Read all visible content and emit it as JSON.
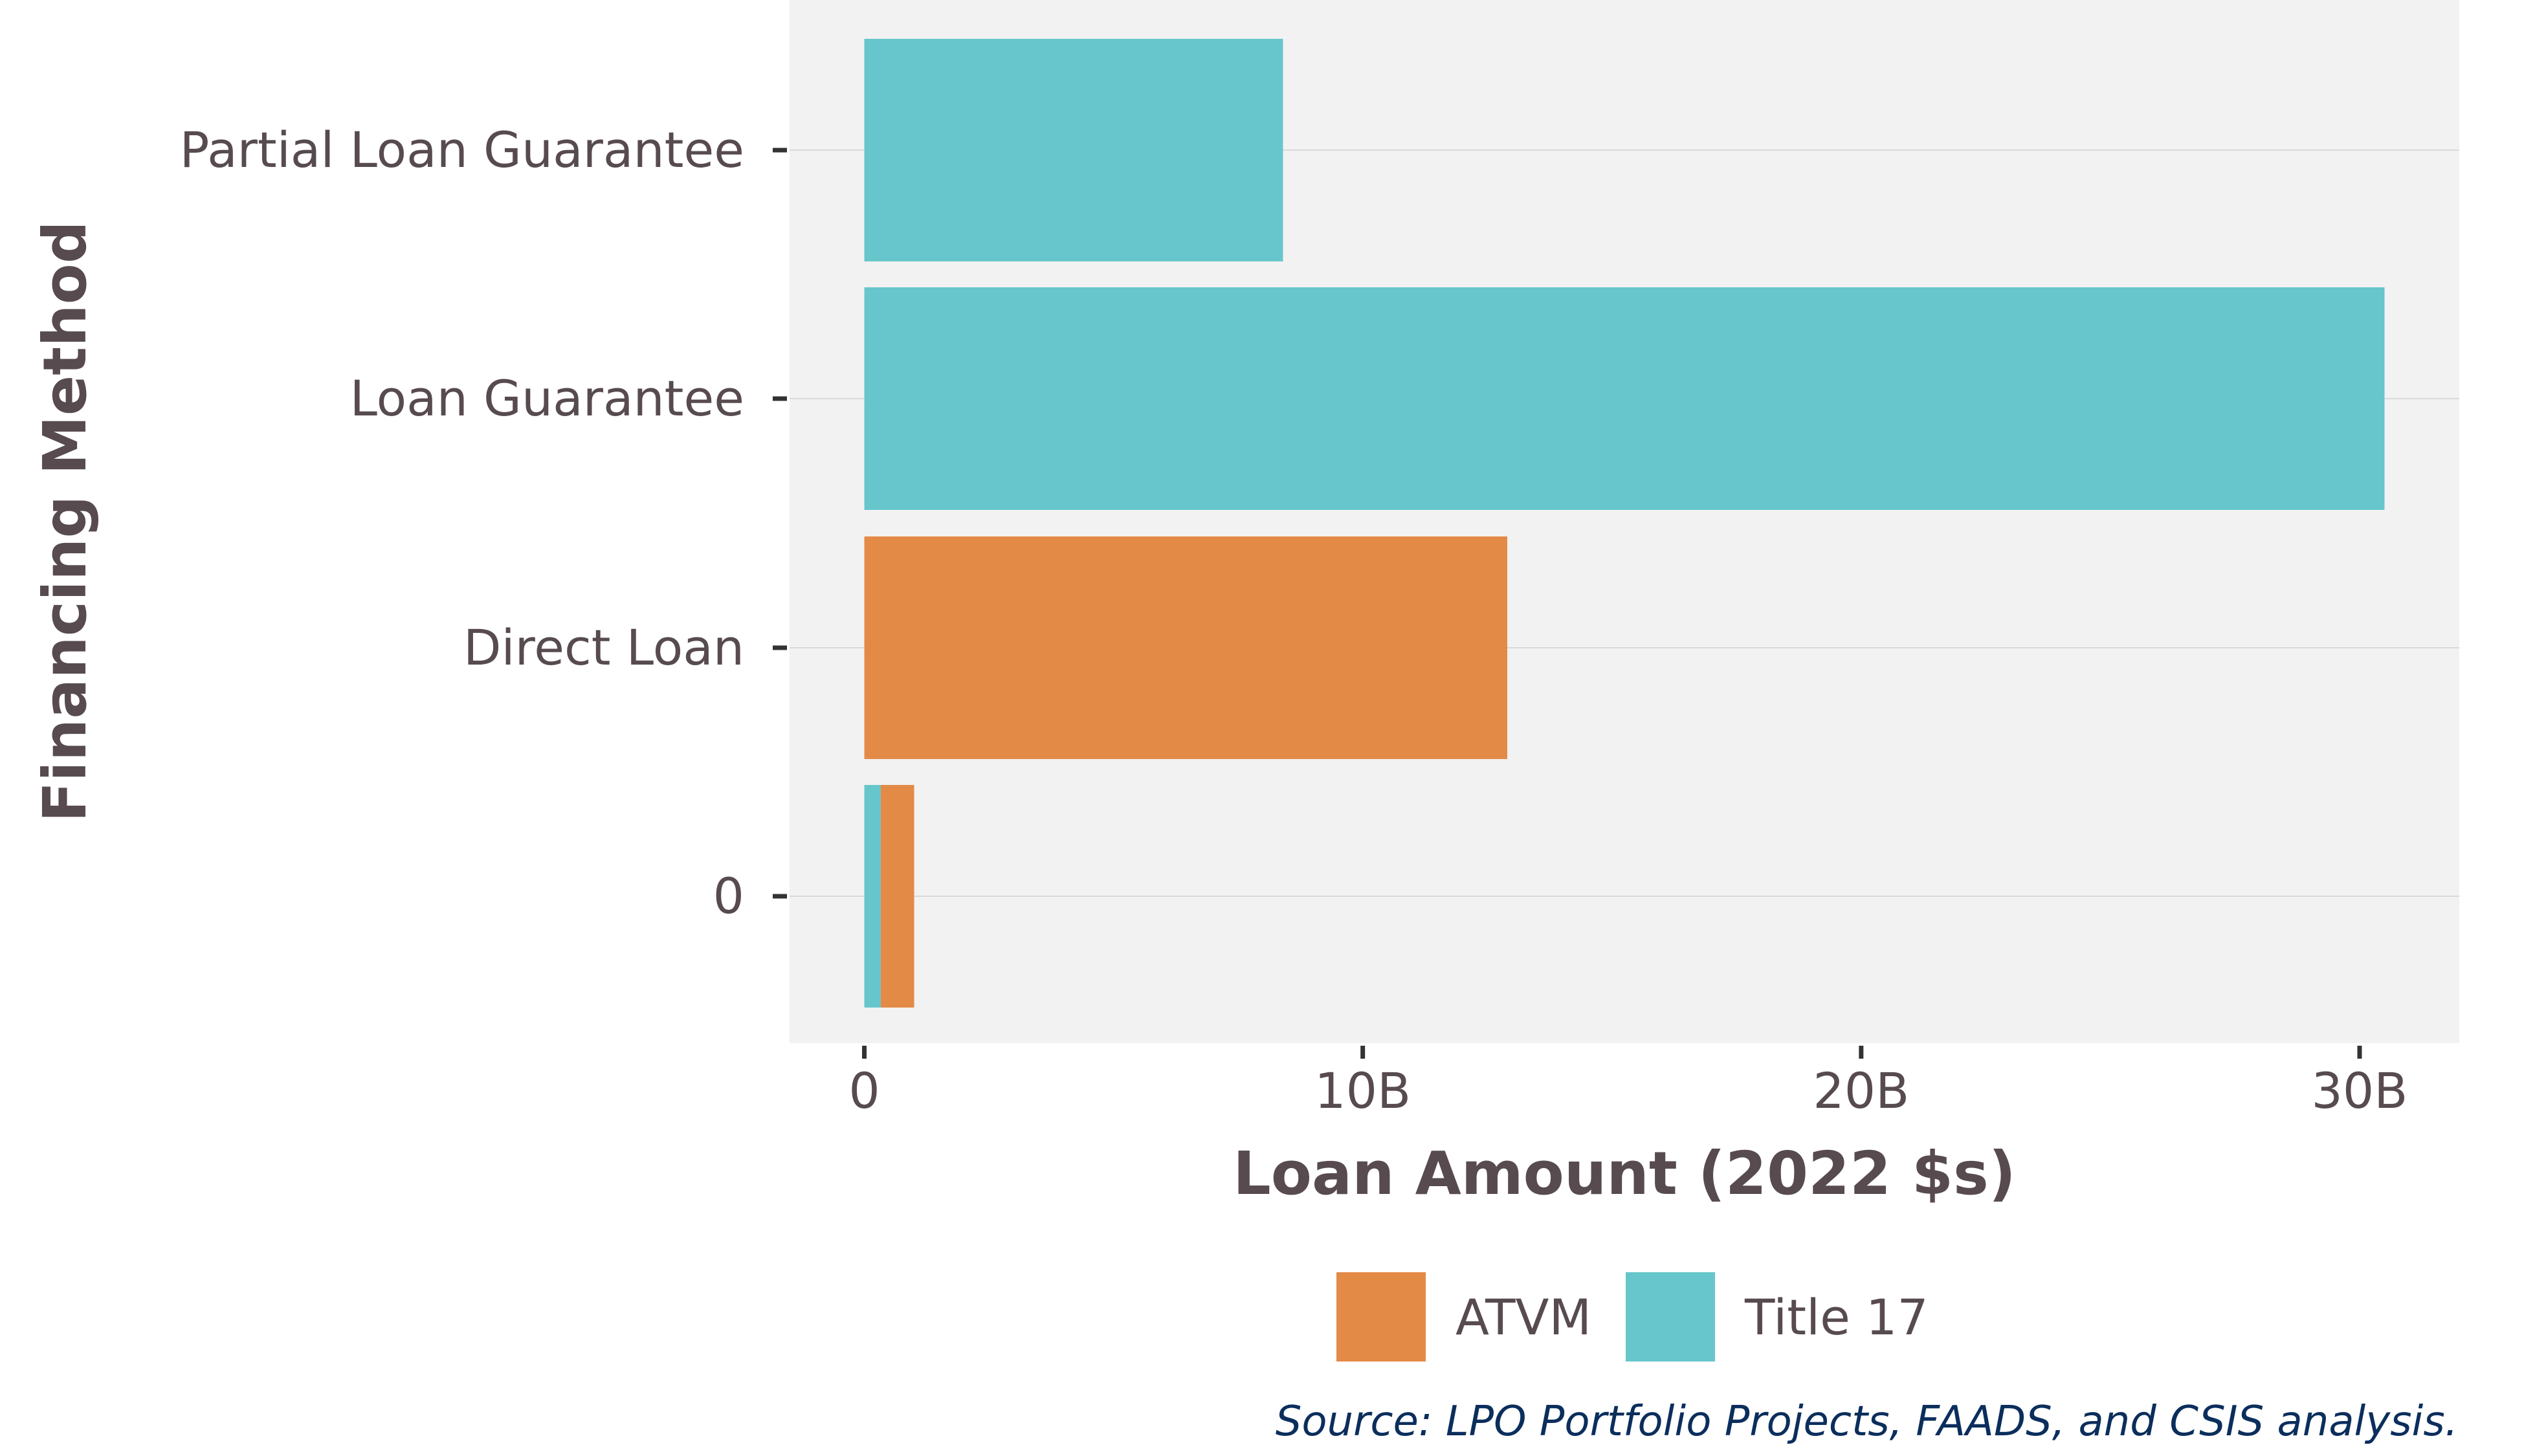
{
  "chart_data": {
    "type": "bar",
    "orientation": "horizontal",
    "stacked": true,
    "categories": [
      "Partial Loan Guarantee",
      "Loan Guarantee",
      "Direct Loan",
      "0"
    ],
    "series": [
      {
        "name": "Title 17",
        "values": [
          8.4,
          30.5,
          0,
          0.33
        ],
        "color": "#67c6cb"
      },
      {
        "name": "ATVM",
        "values": [
          0,
          0,
          12.9,
          0.67
        ],
        "color": "#e48a47"
      }
    ],
    "xlabel": "Loan Amount (2022 $s)",
    "ylabel": "Financing Method",
    "xlim": [
      -1.5,
      32
    ],
    "x_ticks": [
      0,
      10,
      20,
      30
    ],
    "x_tick_labels": [
      "0",
      "10B",
      "20B",
      "30B"
    ],
    "grid": true,
    "legend": {
      "position": "bottom",
      "entries": [
        {
          "label": "ATVM",
          "color": "#e48a47"
        },
        {
          "label": "Title 17",
          "color": "#67c6cb"
        }
      ]
    },
    "source_note": "Source:  LPO Portfolio Projects, FAADS, and CSIS analysis.",
    "panel_background": "#f2f2f2",
    "grid_color": "#d9d9d9",
    "text_color": "#574b50",
    "source_color": "#0b2e5c"
  }
}
